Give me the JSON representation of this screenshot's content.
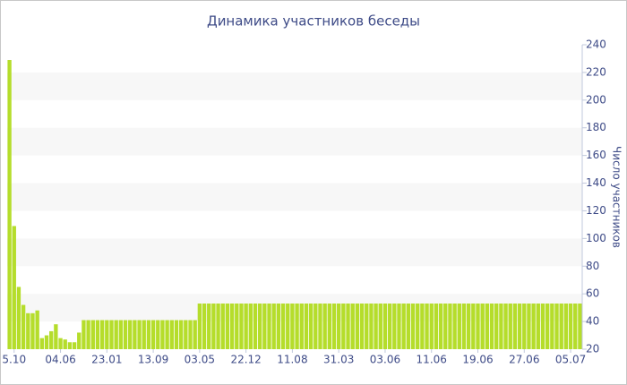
{
  "chart_data": {
    "type": "bar",
    "title": "Динамика участников беседы",
    "y_label": "Число участников",
    "categories": [
      null,
      "5.10",
      null,
      null,
      null,
      null,
      null,
      null,
      null,
      null,
      null,
      "04.06",
      null,
      null,
      null,
      null,
      null,
      null,
      null,
      null,
      null,
      "23.01",
      null,
      null,
      null,
      null,
      null,
      null,
      null,
      null,
      null,
      "13.09",
      null,
      null,
      null,
      null,
      null,
      null,
      null,
      null,
      null,
      "03.05",
      null,
      null,
      null,
      null,
      null,
      null,
      null,
      null,
      null,
      "22.12",
      null,
      null,
      null,
      null,
      null,
      null,
      null,
      null,
      null,
      "11.08",
      null,
      null,
      null,
      null,
      null,
      null,
      null,
      null,
      null,
      "31.03",
      null,
      null,
      null,
      null,
      null,
      null,
      null,
      null,
      null,
      "03.06",
      null,
      null,
      null,
      null,
      null,
      null,
      null,
      null,
      null,
      "11.06",
      null,
      null,
      null,
      null,
      null,
      null,
      null,
      null,
      null,
      "19.06",
      null,
      null,
      null,
      null,
      null,
      null,
      null,
      null,
      null,
      "27.06",
      null,
      null,
      null,
      null,
      null,
      null,
      null,
      null,
      null,
      "05.07",
      null,
      null
    ],
    "values": [
      229,
      109,
      65,
      52,
      46,
      46,
      48,
      28,
      30,
      33,
      38,
      28,
      27,
      25,
      25,
      32,
      41,
      41,
      41,
      41,
      41,
      41,
      41,
      41,
      41,
      41,
      41,
      41,
      41,
      41,
      41,
      41,
      41,
      41,
      41,
      41,
      41,
      41,
      41,
      41,
      41,
      53,
      53,
      53,
      53,
      53,
      53,
      53,
      53,
      53,
      53,
      53,
      53,
      53,
      53,
      53,
      53,
      53,
      53,
      53,
      53,
      53,
      53,
      53,
      53,
      53,
      53,
      53,
      53,
      53,
      53,
      53,
      53,
      53,
      53,
      53,
      53,
      53,
      53,
      53,
      53,
      53,
      53,
      53,
      53,
      53,
      53,
      53,
      53,
      53,
      53,
      53,
      53,
      53,
      53,
      53,
      53,
      53,
      53,
      53,
      53,
      53,
      53,
      53,
      53,
      53,
      53,
      53,
      53,
      53,
      53,
      53,
      53,
      53,
      53,
      53,
      53,
      53,
      53,
      53,
      53,
      53,
      53,
      53
    ],
    "color": "#b5dd2b",
    "ylim": [
      20,
      240
    ],
    "yticks": [
      20,
      40,
      60,
      80,
      100,
      120,
      140,
      160,
      180,
      200,
      220,
      240
    ],
    "grid": true
  }
}
